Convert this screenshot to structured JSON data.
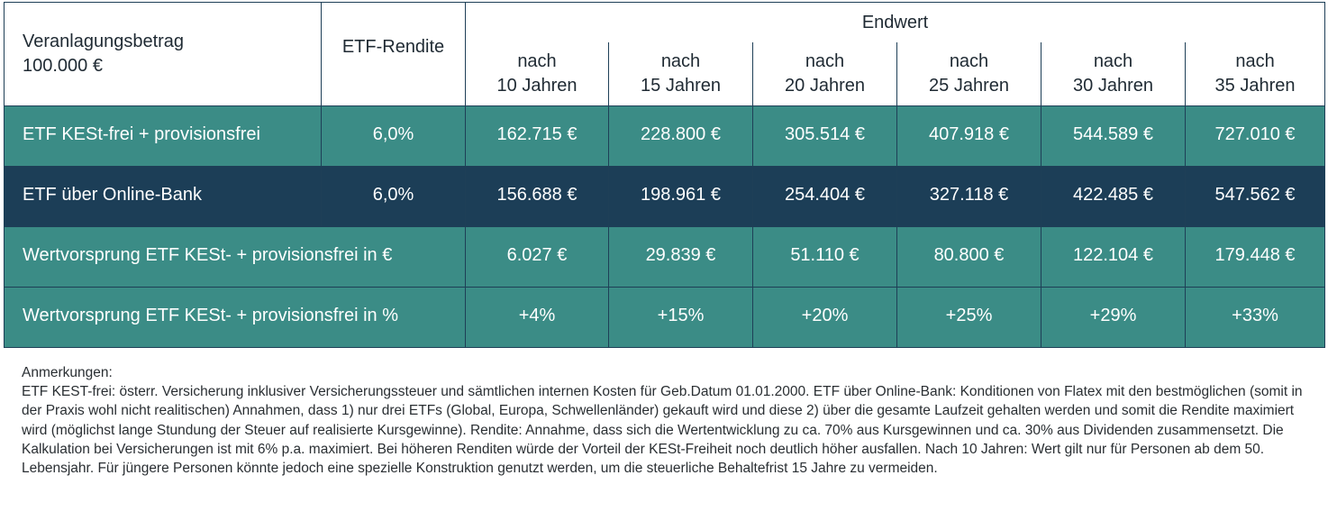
{
  "header": {
    "investment_label_line1": "Veranlagungsbetrag",
    "investment_label_line2": "100.000 €",
    "return_label": "ETF-Rendite",
    "endwert_label": "Endwert",
    "years": [
      {
        "line1": "nach",
        "line2": "10 Jahren"
      },
      {
        "line1": "nach",
        "line2": "15 Jahren"
      },
      {
        "line1": "nach",
        "line2": "20 Jahren"
      },
      {
        "line1": "nach",
        "line2": "25 Jahren"
      },
      {
        "line1": "nach",
        "line2": "30 Jahren"
      },
      {
        "line1": "nach",
        "line2": "35 Jahren"
      }
    ]
  },
  "rows": [
    {
      "label": "ETF KESt-frei + provisionsfrei",
      "rendite": "6,0%",
      "values": [
        "162.715 €",
        "228.800 €",
        "305.514 €",
        "407.918 €",
        "544.589 €",
        "727.010 €"
      ]
    },
    {
      "label": "ETF über Online-Bank",
      "rendite": "6,0%",
      "values": [
        "156.688 €",
        "198.961 €",
        "254.404 €",
        "327.118 €",
        "422.485 €",
        "547.562 €"
      ]
    },
    {
      "label": "Wertvorsprung ETF KESt- + provisionsfrei in €",
      "values": [
        "6.027 €",
        "29.839 €",
        "51.110 €",
        "80.800 €",
        "122.104 €",
        "179.448 €"
      ]
    },
    {
      "label": "Wertvorsprung ETF KESt- + provisionsfrei in %",
      "values": [
        "+4%",
        "+15%",
        "+20%",
        "+25%",
        "+29%",
        "+33%"
      ]
    }
  ],
  "notes": {
    "title": "Anmerkungen:",
    "text": "ETF KEST-frei: österr. Versicherung inklusiver Versicherungssteuer und sämtlichen internen Kosten für Geb.Datum 01.01.2000. ETF über Online-Bank: Konditionen von Flatex mit den bestmöglichen (somit in der Praxis wohl nicht realitischen) Annahmen, dass 1) nur drei ETFs (Global, Europa, Schwellenländer) gekauft wird und diese 2) über die gesamte Laufzeit gehalten werden und somit die Rendite maximiert wird (möglichst lange Stundung der Steuer auf realisierte Kursgewinne). Rendite: Annahme, dass sich die Wertentwicklung zu ca. 70% aus Kursgewinnen und ca. 30% aus Dividenden zusammensetzt. Die Kalkulation bei Versicherungen ist mit 6% p.a. maximiert. Bei höheren Renditen würde der Vorteil der KESt-Freiheit noch deutlich höher ausfallen. Nach 10 Jahren: Wert gilt nur für Personen ab dem 50. Lebensjahr. Für jüngere Personen könnte jedoch eine spezielle Konstruktion genutzt werden, um die steuerliche Behaltefrist 15 Jahre zu vermeiden."
  },
  "colors": {
    "teal": "#3b8c86",
    "navy": "#1c3e57",
    "border": "#1e3f57"
  }
}
